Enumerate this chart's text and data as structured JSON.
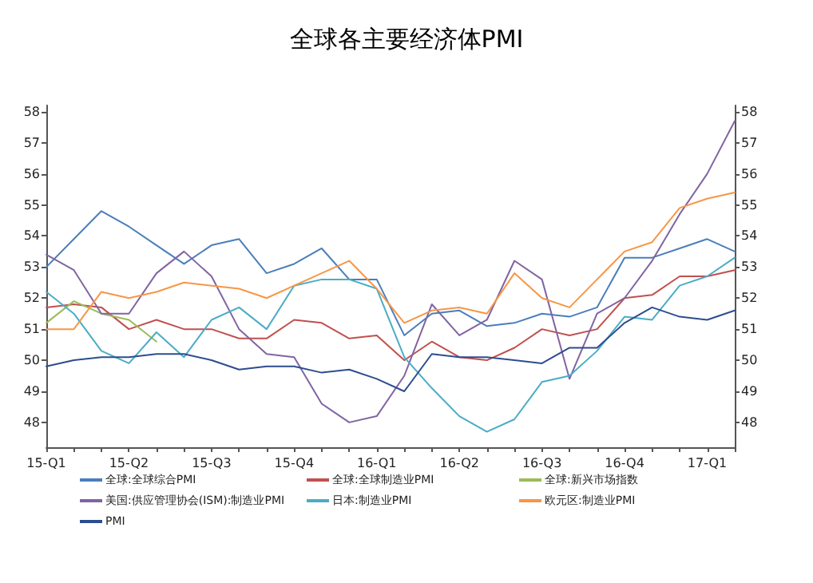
{
  "chart_data": {
    "type": "line",
    "title": "全球各主要经济体PMI",
    "categories": [
      "15-Q1",
      null,
      null,
      "15-Q2",
      null,
      null,
      "15-Q3",
      null,
      null,
      "15-Q4",
      null,
      null,
      "16-Q1",
      null,
      null,
      "16-Q2",
      null,
      null,
      "16-Q3",
      null,
      null,
      "16-Q4",
      null,
      null,
      "17-Q1",
      null
    ],
    "series": [
      {
        "name": "全球:全球综合PMI",
        "color": "#4a7ebb",
        "values": [
          53.0,
          53.9,
          54.8,
          54.3,
          53.7,
          53.1,
          53.7,
          53.9,
          52.8,
          53.1,
          53.6,
          52.6,
          52.6,
          50.8,
          51.5,
          51.6,
          51.1,
          51.2,
          51.5,
          51.4,
          51.7,
          53.3,
          53.3,
          53.6,
          53.9,
          53.5
        ]
      },
      {
        "name": "全球:全球制造业PMI",
        "color": "#c0504d",
        "values": [
          51.7,
          51.8,
          51.7,
          51.0,
          51.3,
          51.0,
          51.0,
          50.7,
          50.7,
          51.3,
          51.2,
          50.7,
          50.8,
          50.0,
          50.6,
          50.1,
          50.0,
          50.4,
          51.0,
          50.8,
          51.0,
          52.0,
          52.1,
          52.7,
          52.7,
          52.9
        ]
      },
      {
        "name": "全球:新兴市场指数",
        "color": "#9bbb59",
        "values": [
          51.2,
          51.9,
          51.5,
          51.3,
          50.6,
          null,
          null,
          null,
          null,
          null,
          null,
          null,
          null,
          null,
          null,
          null,
          null,
          null,
          null,
          null,
          null,
          null,
          null,
          null,
          null,
          null
        ]
      },
      {
        "name": "美国:供应管理协会(ISM):制造业PMI",
        "color": "#8064a2",
        "values": [
          53.4,
          52.9,
          51.5,
          51.5,
          52.8,
          53.5,
          52.7,
          51.0,
          50.2,
          50.1,
          48.6,
          48.0,
          48.2,
          49.5,
          51.8,
          50.8,
          51.3,
          53.2,
          52.6,
          49.4,
          51.5,
          52.0,
          53.2,
          54.7,
          56.0,
          57.7
        ]
      },
      {
        "name": "日本:制造业PMI",
        "color": "#4bacc6",
        "values": [
          52.2,
          51.5,
          50.3,
          49.9,
          50.9,
          50.1,
          51.3,
          51.7,
          51.0,
          52.4,
          52.6,
          52.6,
          52.3,
          50.1,
          49.1,
          48.2,
          47.7,
          48.1,
          49.3,
          49.5,
          50.3,
          51.4,
          51.3,
          52.4,
          52.7,
          53.3
        ]
      },
      {
        "name": "欧元区:制造业PMI",
        "color": "#f79646",
        "values": [
          51.0,
          51.0,
          52.2,
          52.0,
          52.2,
          52.5,
          52.4,
          52.3,
          52.0,
          52.4,
          52.8,
          53.2,
          52.3,
          51.2,
          51.6,
          51.7,
          51.5,
          52.8,
          52.0,
          51.7,
          52.6,
          53.5,
          53.8,
          54.9,
          55.2,
          55.4
        ]
      },
      {
        "name": "PMI",
        "color": "#2c4d8f",
        "values": [
          49.8,
          50.0,
          50.1,
          50.1,
          50.2,
          50.2,
          50.0,
          49.7,
          49.8,
          49.8,
          49.6,
          49.7,
          49.4,
          49.0,
          50.2,
          50.1,
          50.1,
          50.0,
          49.9,
          50.4,
          50.4,
          51.2,
          51.7,
          51.4,
          51.3,
          51.6
        ]
      }
    ],
    "ylim": [
      47.2,
      58.2
    ],
    "yticks": [
      48,
      49,
      50,
      51,
      52,
      53,
      54,
      55,
      56,
      57,
      58
    ],
    "y2lim": [
      47.2,
      58.2
    ],
    "y2ticks": [
      48,
      49,
      50,
      51,
      52,
      53,
      54,
      55,
      56,
      57,
      58
    ],
    "grid": false,
    "legend": "bottom",
    "marker": "none",
    "line_style": "solid"
  }
}
